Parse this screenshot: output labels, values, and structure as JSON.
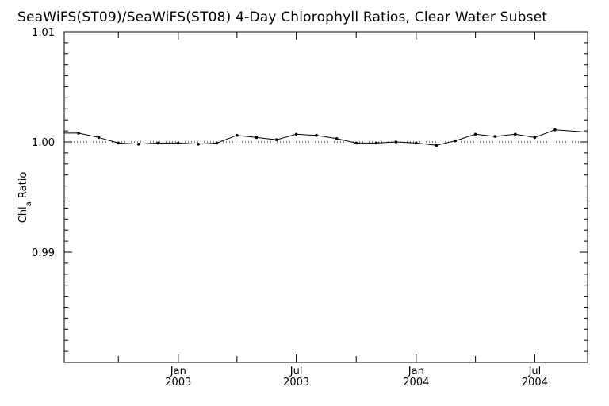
{
  "chart_data": {
    "type": "line",
    "title": "SeaWiFS(ST09)/SeaWiFS(ST08) 4-Day Chlorophyll Ratios, Clear Water Subset",
    "ylabel": "Chl",
    "ylabel_subscript": "a",
    "ylabel_suffix": " Ratio",
    "xlabel": "",
    "xlim": [
      "2002-07-10",
      "2004-09-20"
    ],
    "ylim": [
      0.98,
      1.01
    ],
    "yticks": [
      {
        "value": 0.99,
        "label": "0.99"
      },
      {
        "value": 1.0,
        "label": "1.00"
      },
      {
        "value": 1.01,
        "label": "1.01"
      }
    ],
    "xticks": [
      {
        "date": "2003-01-01",
        "month": "Jan",
        "year": "2003"
      },
      {
        "date": "2003-07-01",
        "month": "Jul",
        "year": "2003"
      },
      {
        "date": "2004-01-01",
        "month": "Jan",
        "year": "2004"
      },
      {
        "date": "2004-07-01",
        "month": "Jul",
        "year": "2004"
      }
    ],
    "reference_line": {
      "value": 1.0,
      "style": "dotted"
    },
    "series": [
      {
        "x": [
          "2002-08-01",
          "2002-09-01",
          "2002-10-01",
          "2002-11-01",
          "2002-12-01",
          "2003-01-01",
          "2003-02-01",
          "2003-03-01",
          "2003-04-01",
          "2003-05-01",
          "2003-06-01",
          "2003-07-01",
          "2003-08-01",
          "2003-09-01",
          "2003-10-01",
          "2003-11-01",
          "2003-12-01",
          "2004-01-01",
          "2004-02-01",
          "2004-03-01",
          "2004-04-01",
          "2004-05-01",
          "2004-06-01",
          "2004-07-01",
          "2004-08-01"
        ],
        "y": [
          1.0008,
          1.0004,
          0.9999,
          0.9998,
          0.9999,
          0.9999,
          0.9998,
          0.9999,
          1.0006,
          1.0004,
          1.0002,
          1.0007,
          1.0006,
          1.0003,
          0.9999,
          0.9999,
          1.0,
          0.9999,
          0.9997,
          1.0001,
          1.0007,
          1.0005,
          1.0007,
          1.0004,
          1.0011
        ]
      }
    ]
  }
}
